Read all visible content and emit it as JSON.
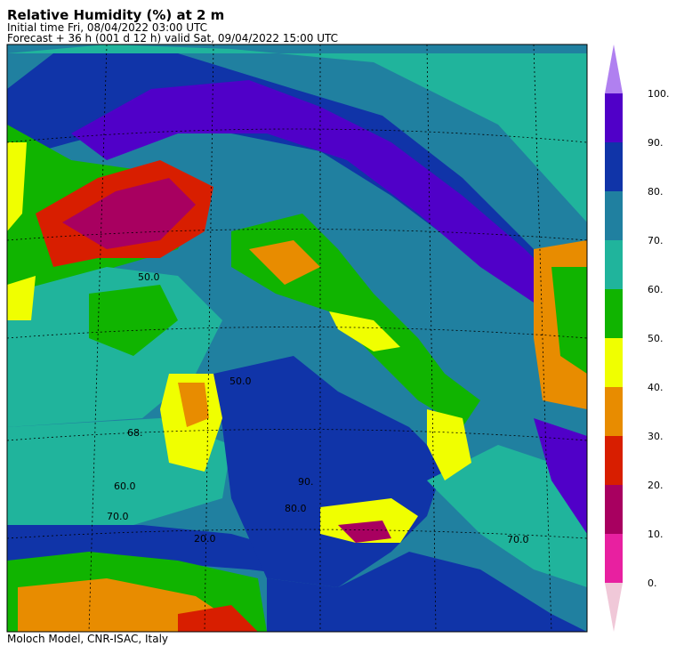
{
  "header": {
    "title": "Relative Humidity (%) at 2 m",
    "initial_time": "Initial time  Fri, 08/04/2022  03:00 UTC",
    "forecast": "Forecast  +  36 h  (001 d 12 h)  valid Sat, 09/04/2022 15:00 UTC"
  },
  "footer": "Moloch Model, CNR-ISAC, Italy",
  "map_labels": [
    "90.",
    "68.",
    "80.0",
    "50.0",
    "60.0",
    "70.0",
    "20.0",
    "50.0",
    "70.0"
  ],
  "legend": {
    "labels": [
      "0.",
      "10.",
      "20.",
      "30.",
      "40.",
      "50.",
      "60.",
      "70.",
      "80.",
      "90.",
      "100."
    ],
    "colors": [
      "#e820a0",
      "#a80060",
      "#d81e00",
      "#e88c00",
      "#f0ff00",
      "#10b400",
      "#20b49c",
      "#2080a0",
      "#1034a8",
      "#5000c8"
    ],
    "under_color": "#f0c8d8",
    "over_color": "#b080f0"
  }
}
